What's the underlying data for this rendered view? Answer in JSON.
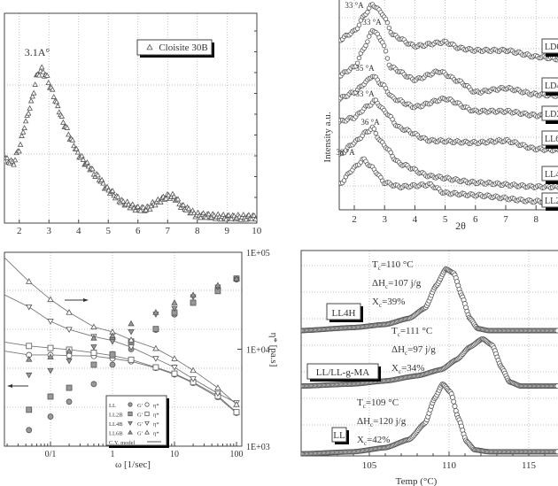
{
  "chart_data": [
    {
      "type": "scatter",
      "xlim": [
        1.5,
        10
      ],
      "ylim": [
        0,
        100
      ],
      "y_units": "a.u.",
      "grid": true,
      "x_ticks": [
        "2",
        "3",
        "4",
        "5",
        "6",
        "7",
        "8",
        "9",
        "10"
      ],
      "legend": {
        "position": "top-right",
        "entries": [
          "Cloisite 30B"
        ]
      },
      "annotations": [
        "3.1A°"
      ],
      "series": [
        {
          "name": "Cloisite 30B",
          "marker": "open-triangle",
          "points": [
            [
              1.5,
              30
            ],
            [
              1.8,
              28
            ],
            [
              2.0,
              35
            ],
            [
              2.2,
              47
            ],
            [
              2.4,
              57
            ],
            [
              2.6,
              70
            ],
            [
              2.75,
              73
            ],
            [
              2.9,
              70
            ],
            [
              3.1,
              63
            ],
            [
              3.3,
              55
            ],
            [
              3.5,
              47
            ],
            [
              3.8,
              38
            ],
            [
              4.0,
              32
            ],
            [
              4.3,
              27
            ],
            [
              4.6,
              22
            ],
            [
              5.0,
              15
            ],
            [
              5.5,
              9
            ],
            [
              6.0,
              6
            ],
            [
              6.3,
              6
            ],
            [
              6.6,
              9
            ],
            [
              7.0,
              12
            ],
            [
              7.2,
              12
            ],
            [
              7.5,
              7
            ],
            [
              8.0,
              3
            ],
            [
              9.0,
              2
            ],
            [
              10,
              2
            ]
          ]
        }
      ]
    },
    {
      "type": "scatter",
      "xlabel": "2θ",
      "ylabel": "Intensity a.u.",
      "xlim": [
        1.5,
        9.3
      ],
      "ylim": [
        0,
        100
      ],
      "grid": true,
      "x_ticks": [
        "2",
        "3",
        "4",
        "5",
        "6",
        "7",
        "8"
      ],
      "series": [
        {
          "name": "LD6",
          "peak_label": "33 °A",
          "points": [
            [
              1.5,
              81
            ],
            [
              2,
              85
            ],
            [
              2.4,
              94
            ],
            [
              2.6,
              98
            ],
            [
              2.9,
              94
            ],
            [
              3.3,
              83
            ],
            [
              4,
              78
            ],
            [
              5,
              80
            ],
            [
              5.5,
              77
            ],
            [
              6,
              76
            ],
            [
              7,
              76
            ],
            [
              8,
              73
            ],
            [
              9.3,
              71
            ]
          ]
        },
        {
          "name": "LD4",
          "peak_label": "33 °A",
          "points": [
            [
              1.5,
              64
            ],
            [
              2,
              68
            ],
            [
              2.4,
              79
            ],
            [
              2.6,
              86
            ],
            [
              2.9,
              81
            ],
            [
              3.2,
              68
            ],
            [
              4,
              62
            ],
            [
              4.8,
              66
            ],
            [
              5.5,
              61
            ],
            [
              6,
              56
            ],
            [
              7,
              58
            ],
            [
              8,
              55
            ],
            [
              9.3,
              54
            ]
          ]
        },
        {
          "name": "LD2",
          "peak_label": "35 °A",
          "points": [
            [
              1.5,
              53
            ],
            [
              2,
              56
            ],
            [
              2.4,
              61
            ],
            [
              2.6,
              64
            ],
            [
              2.9,
              60
            ],
            [
              3.3,
              53
            ],
            [
              4,
              49
            ],
            [
              5,
              53
            ],
            [
              6,
              47
            ],
            [
              7,
              47
            ],
            [
              8,
              45
            ],
            [
              9.3,
              44
            ]
          ]
        },
        {
          "name": "LL6",
          "peak_label": "33 °A",
          "points": [
            [
              1.5,
              42
            ],
            [
              2,
              44
            ],
            [
              2.4,
              49
            ],
            [
              2.7,
              52
            ],
            [
              3.0,
              47
            ],
            [
              3.5,
              39
            ],
            [
              4.5,
              33
            ],
            [
              6,
              32
            ],
            [
              7,
              33
            ],
            [
              8,
              29
            ],
            [
              9.3,
              28
            ]
          ]
        },
        {
          "name": "LL4",
          "peak_label": "36 °A",
          "points": [
            [
              1.5,
              26
            ],
            [
              2,
              32
            ],
            [
              2.4,
              37
            ],
            [
              2.6,
              39
            ],
            [
              2.9,
              32
            ],
            [
              3.5,
              22
            ],
            [
              4.5,
              16
            ],
            [
              6,
              13
            ],
            [
              8,
              11
            ],
            [
              9.3,
              11
            ]
          ]
        },
        {
          "name": "LL2",
          "peak_label": "38 °A",
          "points": [
            [
              1.5,
              12
            ],
            [
              2,
              20
            ],
            [
              2.3,
              24
            ],
            [
              2.6,
              20
            ],
            [
              3,
              13
            ],
            [
              3.5,
              11
            ],
            [
              4.5,
              12
            ],
            [
              5,
              8
            ],
            [
              6,
              7
            ],
            [
              8,
              4
            ],
            [
              9.3,
              4
            ]
          ]
        }
      ]
    },
    {
      "type": "scatter",
      "xlabel": "ω [1/sec]",
      "ylabel_right": "η* [pa.s]",
      "x_scale": "log",
      "xlim": [
        0.0175,
        100
      ],
      "ylim_right": [
        1000,
        100000
      ],
      "ylim_left": [
        1,
        100000
      ],
      "y_scale": "log",
      "grid": true,
      "x_ticks": [
        {
          "value": 0.1,
          "label": "0/1"
        },
        {
          "value": 1,
          "label": "1"
        },
        {
          "value": 10,
          "label": "10"
        },
        {
          "value": 100,
          "label": "100"
        }
      ],
      "right_ticks": [
        {
          "value": 100000,
          "label": "1E+05"
        },
        {
          "value": 10000,
          "label": "1E+04"
        },
        {
          "value": 1000,
          "label": "1E+03"
        }
      ],
      "omega": [
        0.045,
        0.1,
        0.2,
        0.5,
        1,
        2,
        5,
        10,
        20,
        50,
        100
      ],
      "legend": {
        "position": "bottom-center",
        "rows": [
          {
            "name": "LL",
            "g_label": "G'",
            "eta_label": "η*",
            "marker": "circle"
          },
          {
            "name": "LL2B",
            "g_label": "G'",
            "eta_label": "η*",
            "marker": "square"
          },
          {
            "name": "LL4B",
            "g_label": "G'",
            "eta_label": "η*",
            "marker": "triangle-down"
          },
          {
            "name": "LL6B",
            "g_label": "G'",
            "eta_label": "η*",
            "marker": "triangle-up"
          },
          {
            "name": "C.Y. model",
            "marker": "line"
          }
        ]
      },
      "series": [
        {
          "name": "LL",
          "marker": "circle",
          "G_prime": [
            2.6,
            5.8,
            14,
            40,
            126,
            316,
            1000,
            2500,
            5000,
            11200,
            20000
          ],
          "eta_star": [
            8730,
            8730,
            8600,
            8500,
            8020,
            7500,
            6400,
            5500,
            4480,
            3200,
            2200
          ]
        },
        {
          "name": "LL2B",
          "marker": "square",
          "G_prime": [
            8.7,
            19,
            32,
            126,
            234,
            500,
            1050,
            2800,
            5000,
            10000,
            21000
          ],
          "eta_star": [
            10800,
            10300,
            9900,
            9200,
            8600,
            7800,
            6500,
            5600,
            4570,
            3300,
            2240
          ]
        },
        {
          "name": "LL4B",
          "marker": "triangle-down",
          "G_prime": [
            68,
            89,
            158,
            363,
            501,
            891,
            2510,
            3550,
            7080,
            12600,
            20000
          ],
          "eta_star": [
            27300,
            19400,
            16000,
            13500,
            12300,
            10500,
            8000,
            6500,
            4940,
            3500,
            2800
          ]
        },
        {
          "name": "LL6B",
          "marker": "triangle-up",
          "G_prime": [
            174,
            200,
            282,
            617,
            708,
            1450,
            2820,
            5010,
            7940,
            14100,
            20900
          ],
          "eta_star": [
            50000,
            32600,
            24000,
            17000,
            15100,
            12500,
            10200,
            8000,
            6060,
            4000,
            2700
          ]
        }
      ]
    },
    {
      "type": "scatter",
      "xlabel": "Temp (°C)",
      "xlim": [
        100.7,
        116.8
      ],
      "ylim": [
        0,
        100
      ],
      "grid": true,
      "x_ticks": [
        {
          "value": 100,
          "label": "100"
        },
        {
          "value": 105,
          "label": "105"
        },
        {
          "value": 110,
          "label": "110"
        },
        {
          "value": 115,
          "label": "115"
        }
      ],
      "series": [
        {
          "name": "LL4H",
          "Tc": "=110 °C",
          "dHc": "=107 j/g",
          "Xc": "=39%",
          "points": [
            [
              100.7,
              61
            ],
            [
              104,
              62.5
            ],
            [
              106,
              64
            ],
            [
              107.5,
              67
            ],
            [
              108.5,
              72
            ],
            [
              109.2,
              83
            ],
            [
              109.8,
              91
            ],
            [
              110.3,
              89
            ],
            [
              110.8,
              78
            ],
            [
              111.3,
              67
            ],
            [
              111.8,
              62
            ],
            [
              112.5,
              61
            ],
            [
              116.8,
              61
            ]
          ]
        },
        {
          "name": "LL/LL-g-MA",
          "Tc": "=111 °C",
          "dHc": "=97 j/g",
          "Xc": "=34%",
          "points": [
            [
              100.7,
              34
            ],
            [
              104,
              35
            ],
            [
              106,
              36.5
            ],
            [
              108,
              39
            ],
            [
              109.5,
              42
            ],
            [
              110.5,
              47
            ],
            [
              111.3,
              53
            ],
            [
              112.1,
              57
            ],
            [
              112.7,
              54
            ],
            [
              113.3,
              43
            ],
            [
              113.8,
              36
            ],
            [
              114.5,
              34
            ],
            [
              116.8,
              34
            ]
          ]
        },
        {
          "name": "LL",
          "Tc": "=109 °C",
          "dHc": "=120 j/g",
          "Xc": "=42%",
          "points": [
            [
              100.7,
              1
            ],
            [
              104,
              2
            ],
            [
              106,
              4
            ],
            [
              107.5,
              8
            ],
            [
              108.5,
              16
            ],
            [
              109.1,
              28
            ],
            [
              109.6,
              35
            ],
            [
              110.1,
              31
            ],
            [
              110.6,
              18
            ],
            [
              111.1,
              7
            ],
            [
              111.6,
              3
            ],
            [
              112.5,
              2
            ],
            [
              116.8,
              2
            ]
          ]
        }
      ],
      "symbols": {
        "T": "T",
        "dH": "ΔH",
        "X": "X",
        "sub": "c"
      }
    }
  ]
}
